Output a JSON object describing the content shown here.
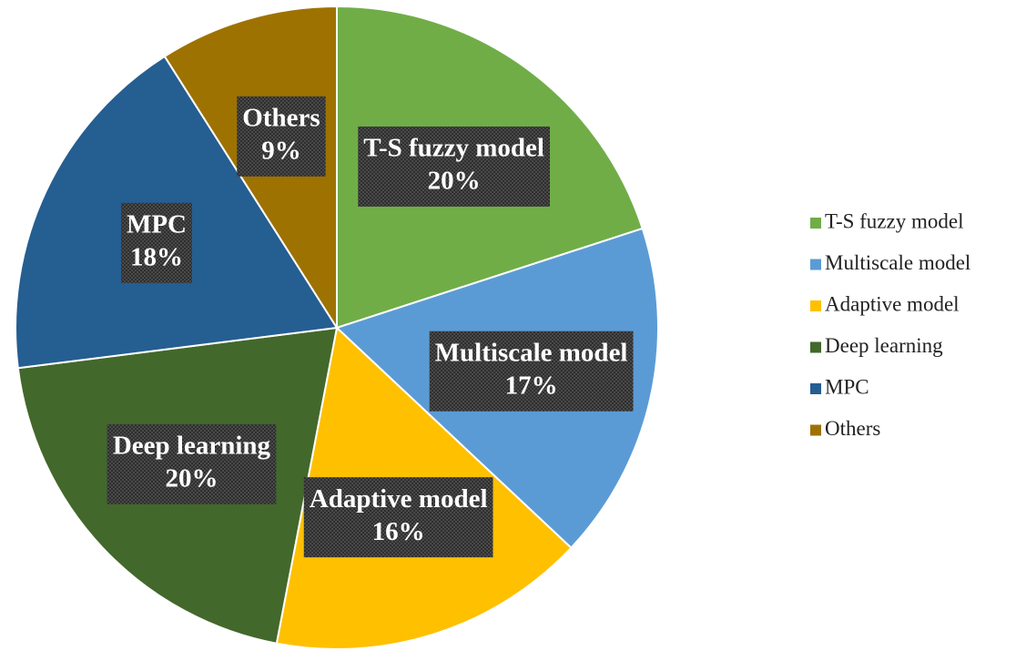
{
  "chart_data": {
    "type": "pie",
    "categories": [
      "T-S fuzzy model",
      "Multiscale model",
      "Adaptive model",
      "Deep learning",
      "MPC",
      "Others"
    ],
    "values": [
      20,
      17,
      16,
      20,
      18,
      9
    ],
    "value_labels": [
      "20%",
      "17%",
      "16%",
      "20%",
      "18%",
      "9%"
    ],
    "colors": [
      "#70ad47",
      "#5b9bd5",
      "#ffc000",
      "#43682b",
      "#255e91",
      "#9e7200"
    ],
    "legend": "right"
  }
}
